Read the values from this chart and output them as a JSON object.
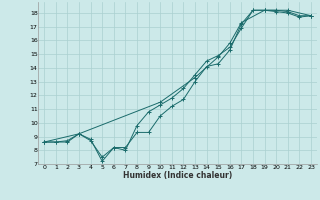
{
  "xlabel": "Humidex (Indice chaleur)",
  "bg_color": "#cce9e9",
  "grid_color": "#aad0d0",
  "line_color": "#1a6b6b",
  "xlim": [
    -0.5,
    23.5
  ],
  "ylim": [
    7,
    18.8
  ],
  "xticks": [
    0,
    1,
    2,
    3,
    4,
    5,
    6,
    7,
    8,
    9,
    10,
    11,
    12,
    13,
    14,
    15,
    16,
    17,
    18,
    19,
    20,
    21,
    22,
    23
  ],
  "yticks": [
    7,
    8,
    9,
    10,
    11,
    12,
    13,
    14,
    15,
    16,
    17,
    18
  ],
  "line1_x": [
    0,
    1,
    2,
    3,
    4,
    5,
    6,
    7,
    8,
    9,
    10,
    11,
    12,
    13,
    14,
    15,
    16,
    17,
    18,
    19,
    20,
    21,
    22,
    23
  ],
  "line1_y": [
    8.6,
    8.6,
    8.6,
    9.2,
    8.8,
    7.2,
    8.2,
    8.2,
    9.3,
    9.3,
    10.5,
    11.2,
    11.7,
    13.0,
    14.1,
    14.3,
    15.3,
    17.2,
    18.2,
    18.2,
    18.2,
    18.1,
    17.8,
    17.8
  ],
  "line2_x": [
    0,
    1,
    2,
    3,
    4,
    5,
    6,
    7,
    8,
    9,
    10,
    11,
    12,
    13,
    14,
    15,
    16,
    17,
    18,
    19,
    20,
    21,
    22,
    23
  ],
  "line2_y": [
    8.6,
    8.6,
    8.7,
    9.2,
    8.7,
    7.5,
    8.2,
    8.0,
    9.8,
    10.8,
    11.3,
    11.8,
    12.5,
    13.5,
    14.5,
    14.9,
    15.5,
    16.9,
    18.2,
    18.2,
    18.1,
    18.0,
    17.7,
    17.8
  ],
  "line3_x": [
    0,
    3,
    10,
    13,
    15,
    16,
    17,
    19,
    21,
    23
  ],
  "line3_y": [
    8.6,
    9.2,
    11.5,
    13.3,
    14.8,
    15.8,
    17.3,
    18.2,
    18.2,
    17.8
  ]
}
